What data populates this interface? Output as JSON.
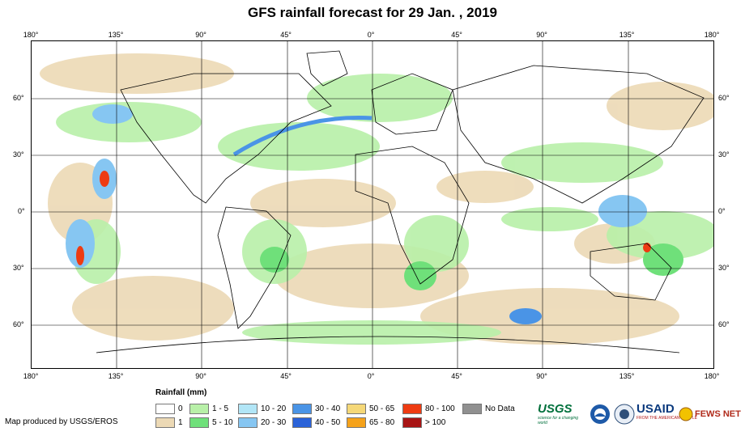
{
  "title": "GFS rainfall forecast for 29 Jan. , 2019",
  "lon_labels": [
    "180°",
    "135°",
    "90°",
    "45°",
    "0°",
    "45°",
    "90°",
    "135°",
    "180°"
  ],
  "lat_labels": [
    "60°",
    "30°",
    "0°",
    "30°",
    "60°"
  ],
  "legend": {
    "title": "Rainfall (mm)",
    "items": [
      {
        "label": "0",
        "color": "#ffffff"
      },
      {
        "label": "1",
        "color": "#ecd9b5"
      },
      {
        "label": "1 - 5",
        "color": "#b8f0a8"
      },
      {
        "label": "5 - 10",
        "color": "#6fe07a"
      },
      {
        "label": "10 - 20",
        "color": "#b2e6f7"
      },
      {
        "label": "20 - 30",
        "color": "#86c6f2"
      },
      {
        "label": "30 - 40",
        "color": "#4a94e6"
      },
      {
        "label": "40 - 50",
        "color": "#2a62d8"
      },
      {
        "label": "50 - 65",
        "color": "#f5d878"
      },
      {
        "label": "65 - 80",
        "color": "#f5a21a"
      },
      {
        "label": "80 - 100",
        "color": "#ee3b12"
      },
      {
        "label": "> 100",
        "color": "#a81414"
      },
      {
        "label": "No Data",
        "color": "#909090"
      }
    ]
  },
  "credit": "Map produced by USGS/EROS",
  "logos": {
    "usgs": "USGS",
    "usgs_tagline": "science for a changing world",
    "usaid": "USAID",
    "usaid_tagline": "FROM THE AMERICAN PEOPLE",
    "fewsnet": "FEWS NET"
  }
}
